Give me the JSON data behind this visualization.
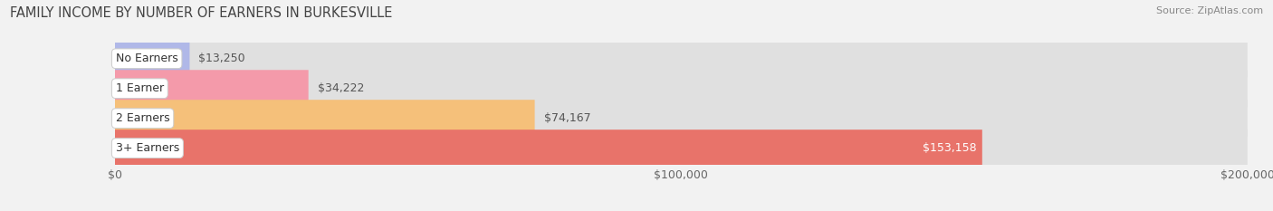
{
  "title": "FAMILY INCOME BY NUMBER OF EARNERS IN BURKESVILLE",
  "source": "Source: ZipAtlas.com",
  "categories": [
    "No Earners",
    "1 Earner",
    "2 Earners",
    "3+ Earners"
  ],
  "values": [
    13250,
    34222,
    74167,
    153158
  ],
  "bar_colors": [
    "#b0b8e8",
    "#f49aaa",
    "#f5c07a",
    "#e8736a"
  ],
  "xlim": [
    0,
    200000
  ],
  "xticks": [
    0,
    100000,
    200000
  ],
  "xtick_labels": [
    "$0",
    "$100,000",
    "$200,000"
  ],
  "background_color": "#f2f2f2",
  "bar_bg_color": "#e0e0e0",
  "title_fontsize": 10.5,
  "source_fontsize": 8,
  "label_fontsize": 9,
  "value_fontsize": 9
}
